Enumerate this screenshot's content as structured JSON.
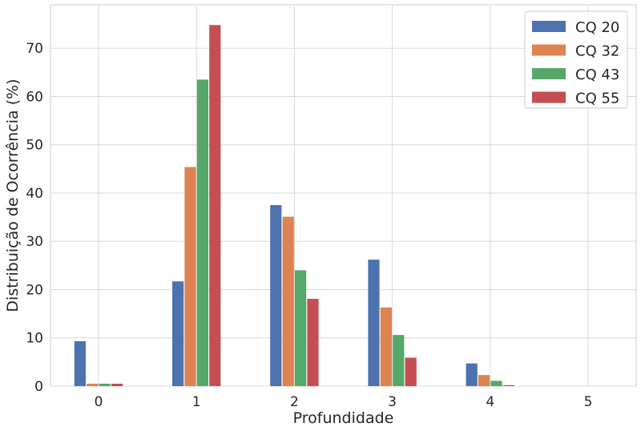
{
  "chart_data": {
    "type": "bar",
    "title": "",
    "xlabel": "Profundidade",
    "ylabel": "Distribuição de Ocorrência (%)",
    "categories": [
      "0",
      "1",
      "2",
      "3",
      "4",
      "5"
    ],
    "ylim": [
      0,
      79
    ],
    "yticks": [
      0,
      10,
      20,
      30,
      40,
      50,
      60,
      70
    ],
    "grid": true,
    "legend_position": "top-right",
    "series": [
      {
        "name": "CQ 20",
        "color": "#4c72b0",
        "values": [
          9.3,
          21.7,
          37.5,
          26.2,
          4.7,
          0.0
        ]
      },
      {
        "name": "CQ 32",
        "color": "#dd8452",
        "values": [
          0.5,
          45.4,
          35.1,
          16.3,
          2.3,
          0.0
        ]
      },
      {
        "name": "CQ 43",
        "color": "#55a868",
        "values": [
          0.5,
          63.5,
          24.0,
          10.6,
          1.1,
          0.0
        ]
      },
      {
        "name": "CQ 55",
        "color": "#c44e52",
        "values": [
          0.5,
          74.8,
          18.1,
          5.9,
          0.2,
          0.0
        ]
      }
    ]
  }
}
